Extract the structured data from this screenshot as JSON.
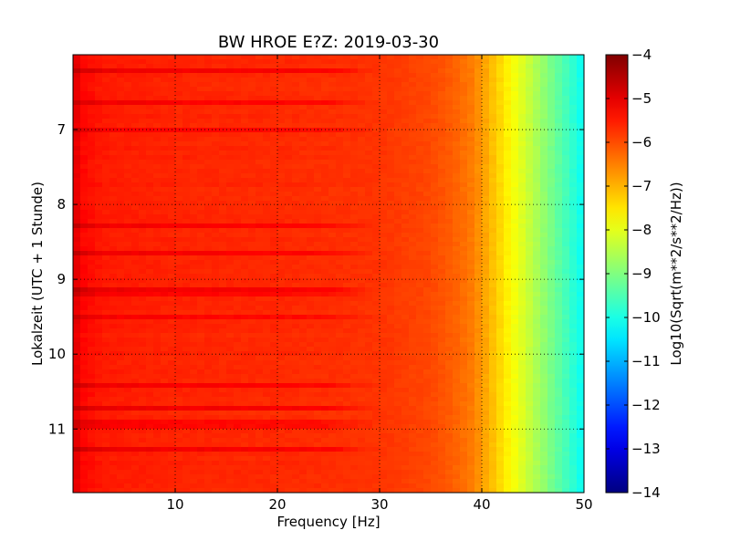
{
  "chart_data": {
    "type": "heatmap",
    "title": "BW HROE E?Z: 2019-03-30",
    "xlabel": "Frequency [Hz]",
    "ylabel": "Lokalzeit (UTC + 1 Stunde)",
    "xlim": [
      0,
      50
    ],
    "ylim": [
      11.85,
      6.0
    ],
    "y_axis_direction": "down",
    "x_ticks": [
      10,
      20,
      30,
      40,
      50
    ],
    "y_ticks": [
      7,
      8,
      9,
      10,
      11
    ],
    "grid": true,
    "grid_style": "dotted",
    "colormap": "jet",
    "colorbar": {
      "label": "Log10(Sqrt(m**2/s**2/Hz))",
      "range": [
        -14,
        -4
      ],
      "ticks": [
        -4,
        -5,
        -6,
        -7,
        -8,
        -9,
        -10,
        -11,
        -12,
        -13,
        -14
      ]
    },
    "spectrum_profile": {
      "frequency_hz": [
        0,
        1,
        3,
        10,
        20,
        30,
        35,
        37,
        39,
        40,
        41,
        42,
        43,
        44,
        45,
        46,
        47,
        48,
        49,
        50
      ],
      "log10_amplitude": [
        -4.9,
        -5.3,
        -5.5,
        -5.6,
        -5.65,
        -5.75,
        -5.95,
        -6.15,
        -6.45,
        -6.75,
        -7.1,
        -7.45,
        -7.8,
        -8.1,
        -8.45,
        -8.8,
        -9.15,
        -9.5,
        -9.85,
        -10.2
      ]
    }
  }
}
